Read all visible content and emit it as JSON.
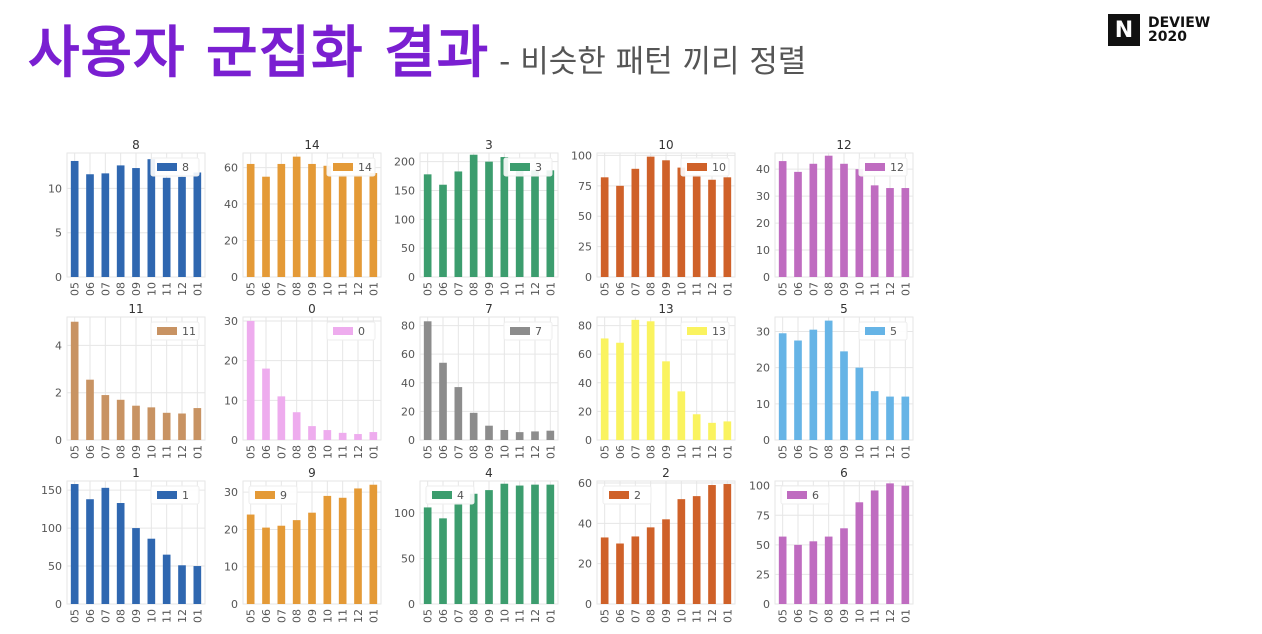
{
  "header": {
    "title": "사용자 군집화 결과",
    "subtitle": "- 비슷한 패턴 끼리 정렬"
  },
  "logo": {
    "mark": "N",
    "line1": "DEVIEW",
    "line2": "2020"
  },
  "colors": {
    "title": "#7a1fd1",
    "grid": "#e6e6e6",
    "tick_text": "#555555"
  },
  "chart_data": [
    {
      "type": "bar",
      "title": "8",
      "categories": [
        "05",
        "06",
        "07",
        "08",
        "09",
        "10",
        "11",
        "12",
        "01"
      ],
      "series": [
        {
          "name": "8",
          "values": [
            13.1,
            11.6,
            11.7,
            12.6,
            12.3,
            13.3,
            11.2,
            11.3,
            11.8
          ]
        }
      ],
      "ylim": [
        0,
        14
      ],
      "yticks": [
        0,
        5,
        10
      ],
      "color": "#2f67b0",
      "legend_position": "top-right"
    },
    {
      "type": "bar",
      "title": "14",
      "categories": [
        "05",
        "06",
        "07",
        "08",
        "09",
        "10",
        "11",
        "12",
        "01"
      ],
      "series": [
        {
          "name": "14",
          "values": [
            62,
            55,
            62,
            66,
            62,
            61,
            56,
            56,
            57
          ]
        }
      ],
      "ylim": [
        0,
        68
      ],
      "yticks": [
        0,
        20,
        40,
        60
      ],
      "color": "#e49a37",
      "legend_position": "top-right"
    },
    {
      "type": "bar",
      "title": "3",
      "categories": [
        "05",
        "06",
        "07",
        "08",
        "09",
        "10",
        "11",
        "12",
        "01"
      ],
      "series": [
        {
          "name": "3",
          "values": [
            178,
            160,
            183,
            212,
            200,
            208,
            188,
            185,
            185
          ]
        }
      ],
      "ylim": [
        0,
        215
      ],
      "yticks": [
        0,
        50,
        100,
        150,
        200
      ],
      "color": "#3c9d6e",
      "legend_position": "top-right"
    },
    {
      "type": "bar",
      "title": "10",
      "categories": [
        "05",
        "06",
        "07",
        "08",
        "09",
        "10",
        "11",
        "12",
        "01"
      ],
      "series": [
        {
          "name": "10",
          "values": [
            82,
            75,
            89,
            99,
            96,
            90,
            84,
            80,
            82
          ]
        }
      ],
      "ylim": [
        0,
        102
      ],
      "yticks": [
        0,
        25,
        50,
        75,
        100
      ],
      "color": "#cf6129",
      "legend_position": "top-right"
    },
    {
      "type": "bar",
      "title": "12",
      "categories": [
        "05",
        "06",
        "07",
        "08",
        "09",
        "10",
        "11",
        "12",
        "01"
      ],
      "series": [
        {
          "name": "12",
          "values": [
            43,
            39,
            42,
            45,
            42,
            40,
            34,
            33,
            33
          ]
        }
      ],
      "ylim": [
        0,
        46
      ],
      "yticks": [
        0,
        10,
        20,
        30,
        40
      ],
      "color": "#bf6cc0",
      "legend_position": "top-right"
    },
    {
      "type": "bar",
      "title": "11",
      "categories": [
        "05",
        "06",
        "07",
        "08",
        "09",
        "10",
        "11",
        "12",
        "01"
      ],
      "series": [
        {
          "name": "11",
          "values": [
            5.0,
            2.55,
            1.9,
            1.7,
            1.45,
            1.38,
            1.15,
            1.12,
            1.35
          ]
        }
      ],
      "ylim": [
        0,
        5.2
      ],
      "yticks": [
        0,
        2,
        4
      ],
      "color": "#c89363",
      "legend_position": "top-right"
    },
    {
      "type": "bar",
      "title": "0",
      "categories": [
        "05",
        "06",
        "07",
        "08",
        "09",
        "10",
        "11",
        "12",
        "01"
      ],
      "series": [
        {
          "name": "0",
          "values": [
            30,
            18,
            11,
            7,
            3.5,
            2.5,
            1.8,
            1.5,
            2
          ]
        }
      ],
      "ylim": [
        0,
        31
      ],
      "yticks": [
        0,
        10,
        20,
        30
      ],
      "color": "#eeacee",
      "legend_position": "top-right"
    },
    {
      "type": "bar",
      "title": "7",
      "categories": [
        "05",
        "06",
        "07",
        "08",
        "09",
        "10",
        "11",
        "12",
        "01"
      ],
      "series": [
        {
          "name": "7",
          "values": [
            83,
            54,
            37,
            19,
            10,
            7,
            5.5,
            6,
            6.5
          ]
        }
      ],
      "ylim": [
        0,
        86
      ],
      "yticks": [
        0,
        20,
        40,
        60,
        80
      ],
      "color": "#8c8c8c",
      "legend_position": "top-right"
    },
    {
      "type": "bar",
      "title": "13",
      "categories": [
        "05",
        "06",
        "07",
        "08",
        "09",
        "10",
        "11",
        "12",
        "01"
      ],
      "series": [
        {
          "name": "13",
          "values": [
            71,
            68,
            84,
            83,
            55,
            34,
            18,
            12,
            13
          ]
        }
      ],
      "ylim": [
        0,
        86
      ],
      "yticks": [
        0,
        20,
        40,
        60,
        80
      ],
      "color": "#faf35f",
      "legend_position": "top-right"
    },
    {
      "type": "bar",
      "title": "5",
      "categories": [
        "05",
        "06",
        "07",
        "08",
        "09",
        "10",
        "11",
        "12",
        "01"
      ],
      "series": [
        {
          "name": "5",
          "values": [
            29.5,
            27.5,
            30.5,
            33,
            24.5,
            20,
            13.5,
            12,
            12
          ]
        }
      ],
      "ylim": [
        0,
        34
      ],
      "yticks": [
        0,
        10,
        20,
        30
      ],
      "color": "#66b4e6",
      "legend_position": "top-right"
    },
    {
      "type": "bar",
      "title": "1",
      "categories": [
        "05",
        "06",
        "07",
        "08",
        "09",
        "10",
        "11",
        "12",
        "01"
      ],
      "series": [
        {
          "name": "1",
          "values": [
            158,
            138,
            153,
            133,
            100,
            86,
            65,
            51,
            50
          ]
        }
      ],
      "ylim": [
        0,
        162
      ],
      "yticks": [
        0,
        50,
        100,
        150
      ],
      "color": "#2f67b0",
      "legend_position": "top-right"
    },
    {
      "type": "bar",
      "title": "9",
      "categories": [
        "05",
        "06",
        "07",
        "08",
        "09",
        "10",
        "11",
        "12",
        "01"
      ],
      "series": [
        {
          "name": "9",
          "values": [
            24,
            20.5,
            21,
            22.5,
            24.5,
            29,
            28.5,
            31,
            32
          ]
        }
      ],
      "ylim": [
        0,
        33
      ],
      "yticks": [
        0,
        10,
        20,
        30
      ],
      "color": "#e49a37",
      "legend_position": "top-left"
    },
    {
      "type": "bar",
      "title": "4",
      "categories": [
        "05",
        "06",
        "07",
        "08",
        "09",
        "10",
        "11",
        "12",
        "01"
      ],
      "series": [
        {
          "name": "4",
          "values": [
            106,
            94,
            111,
            121,
            125,
            132,
            130,
            131,
            131
          ]
        }
      ],
      "ylim": [
        0,
        135
      ],
      "yticks": [
        0,
        50,
        100
      ],
      "color": "#3c9d6e",
      "legend_position": "top-left"
    },
    {
      "type": "bar",
      "title": "2",
      "categories": [
        "05",
        "06",
        "07",
        "08",
        "09",
        "10",
        "11",
        "12",
        "01"
      ],
      "series": [
        {
          "name": "2",
          "values": [
            33,
            30,
            33.5,
            38,
            42,
            52,
            53.5,
            59,
            59.5
          ]
        }
      ],
      "ylim": [
        0,
        61
      ],
      "yticks": [
        0,
        20,
        40,
        60
      ],
      "color": "#cf6129",
      "legend_position": "top-left"
    },
    {
      "type": "bar",
      "title": "6",
      "categories": [
        "05",
        "06",
        "07",
        "08",
        "09",
        "10",
        "11",
        "12",
        "01"
      ],
      "series": [
        {
          "name": "6",
          "values": [
            57,
            50,
            53,
            57,
            64,
            86,
            96,
            102,
            100
          ]
        }
      ],
      "ylim": [
        0,
        104
      ],
      "yticks": [
        0,
        25,
        50,
        75,
        100
      ],
      "color": "#bf6cc0",
      "legend_position": "top-left"
    }
  ]
}
